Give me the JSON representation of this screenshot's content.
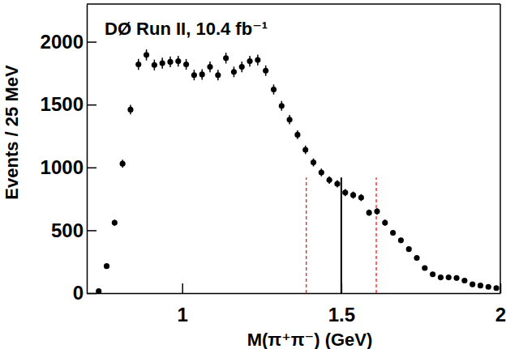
{
  "chart_data": {
    "type": "scatter",
    "marker": "circle",
    "color": "#000000",
    "annotation": "DØ Run II, 10.4 fb⁻¹",
    "x_label": "M(π⁺π⁻) (GeV)",
    "y_label": "Events / 25 MeV",
    "xlim": [
      0.7,
      2.0
    ],
    "ylim": [
      0,
      2300
    ],
    "xticks": [
      1,
      1.5,
      2
    ],
    "yticks": [
      0,
      500,
      1000,
      1500,
      2000
    ],
    "x": [
      0.7375,
      0.7625,
      0.7875,
      0.8125,
      0.8375,
      0.8625,
      0.8875,
      0.9125,
      0.9375,
      0.9625,
      0.9875,
      1.0125,
      1.0375,
      1.0625,
      1.0875,
      1.1125,
      1.1375,
      1.1625,
      1.1875,
      1.2125,
      1.2375,
      1.2625,
      1.2875,
      1.3125,
      1.3375,
      1.3625,
      1.3875,
      1.4125,
      1.4375,
      1.4625,
      1.4875,
      1.5125,
      1.5375,
      1.5625,
      1.5875,
      1.6125,
      1.6375,
      1.6625,
      1.6875,
      1.7125,
      1.7375,
      1.7625,
      1.7875,
      1.8125,
      1.8375,
      1.8625,
      1.8875,
      1.9125,
      1.9375,
      1.9625,
      1.9875
    ],
    "values": [
      15,
      215,
      560,
      1030,
      1460,
      1820,
      1895,
      1815,
      1830,
      1840,
      1845,
      1820,
      1735,
      1740,
      1800,
      1735,
      1870,
      1760,
      1800,
      1845,
      1855,
      1770,
      1620,
      1490,
      1380,
      1260,
      1140,
      1040,
      960,
      900,
      870,
      800,
      780,
      760,
      640,
      650,
      560,
      480,
      420,
      350,
      280,
      200,
      150,
      125,
      125,
      120,
      100,
      70,
      60,
      50,
      40
    ],
    "errors": [
      4,
      15,
      24,
      32,
      38,
      43,
      44,
      43,
      43,
      43,
      43,
      43,
      42,
      42,
      42,
      42,
      43,
      42,
      42,
      43,
      43,
      42,
      40,
      39,
      37,
      35,
      34,
      32,
      31,
      30,
      29,
      28,
      28,
      28,
      25,
      25,
      24,
      22,
      20,
      19,
      17,
      14,
      12,
      11,
      11,
      11,
      10,
      8,
      8,
      7,
      6
    ],
    "vertical_lines": [
      {
        "x": 1.39,
        "ymin": 0,
        "ymax": 920,
        "color": "#ff0000",
        "line_style": "dashed"
      },
      {
        "x": 1.5,
        "ymin": 0,
        "ymax": 920,
        "color": "#000000",
        "line_style": "solid"
      },
      {
        "x": 1.61,
        "ymin": 0,
        "ymax": 920,
        "color": "#ff0000",
        "line_style": "dashed"
      }
    ]
  }
}
